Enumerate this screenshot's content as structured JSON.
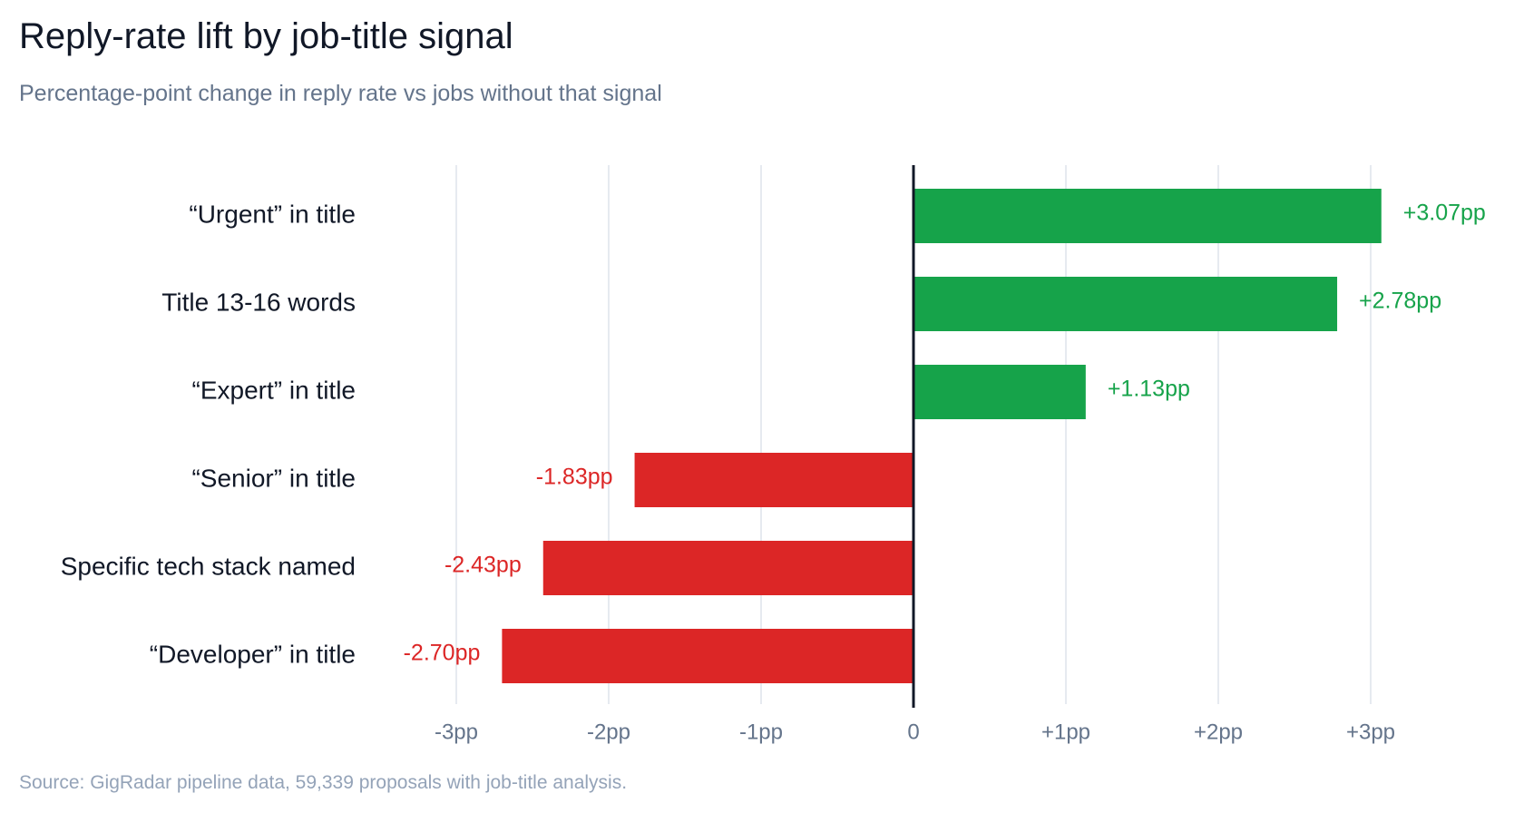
{
  "chart_data": {
    "type": "bar",
    "orientation": "horizontal",
    "title": "Reply-rate lift by job-title signal",
    "subtitle": "Percentage-point change in reply rate vs jobs without that signal",
    "source": "Source: GigRadar pipeline data, 59,339 proposals with job-title analysis.",
    "categories": [
      "“Urgent” in title",
      "Title 13-16 words",
      "“Expert” in title",
      "“Senior” in title",
      "Specific tech stack named",
      "“Developer” in title"
    ],
    "values": [
      3.07,
      2.78,
      1.13,
      -1.83,
      -2.43,
      -2.7
    ],
    "value_labels": [
      "+3.07pp",
      "+2.78pp",
      "+1.13pp",
      "-1.83pp",
      "-2.43pp",
      "-2.70pp"
    ],
    "xlim": [
      -3.3,
      3.6
    ],
    "x_ticks": [
      -3,
      -2,
      -1,
      0,
      1,
      2,
      3
    ],
    "x_tick_labels": [
      "-3pp",
      "-2pp",
      "-1pp",
      "0",
      "+1pp",
      "+2pp",
      "+3pp"
    ],
    "grid": true,
    "colors": {
      "positive": "#16a34a",
      "negative": "#dc2626",
      "zero_line": "#111827",
      "grid": "#dde3ec"
    }
  }
}
